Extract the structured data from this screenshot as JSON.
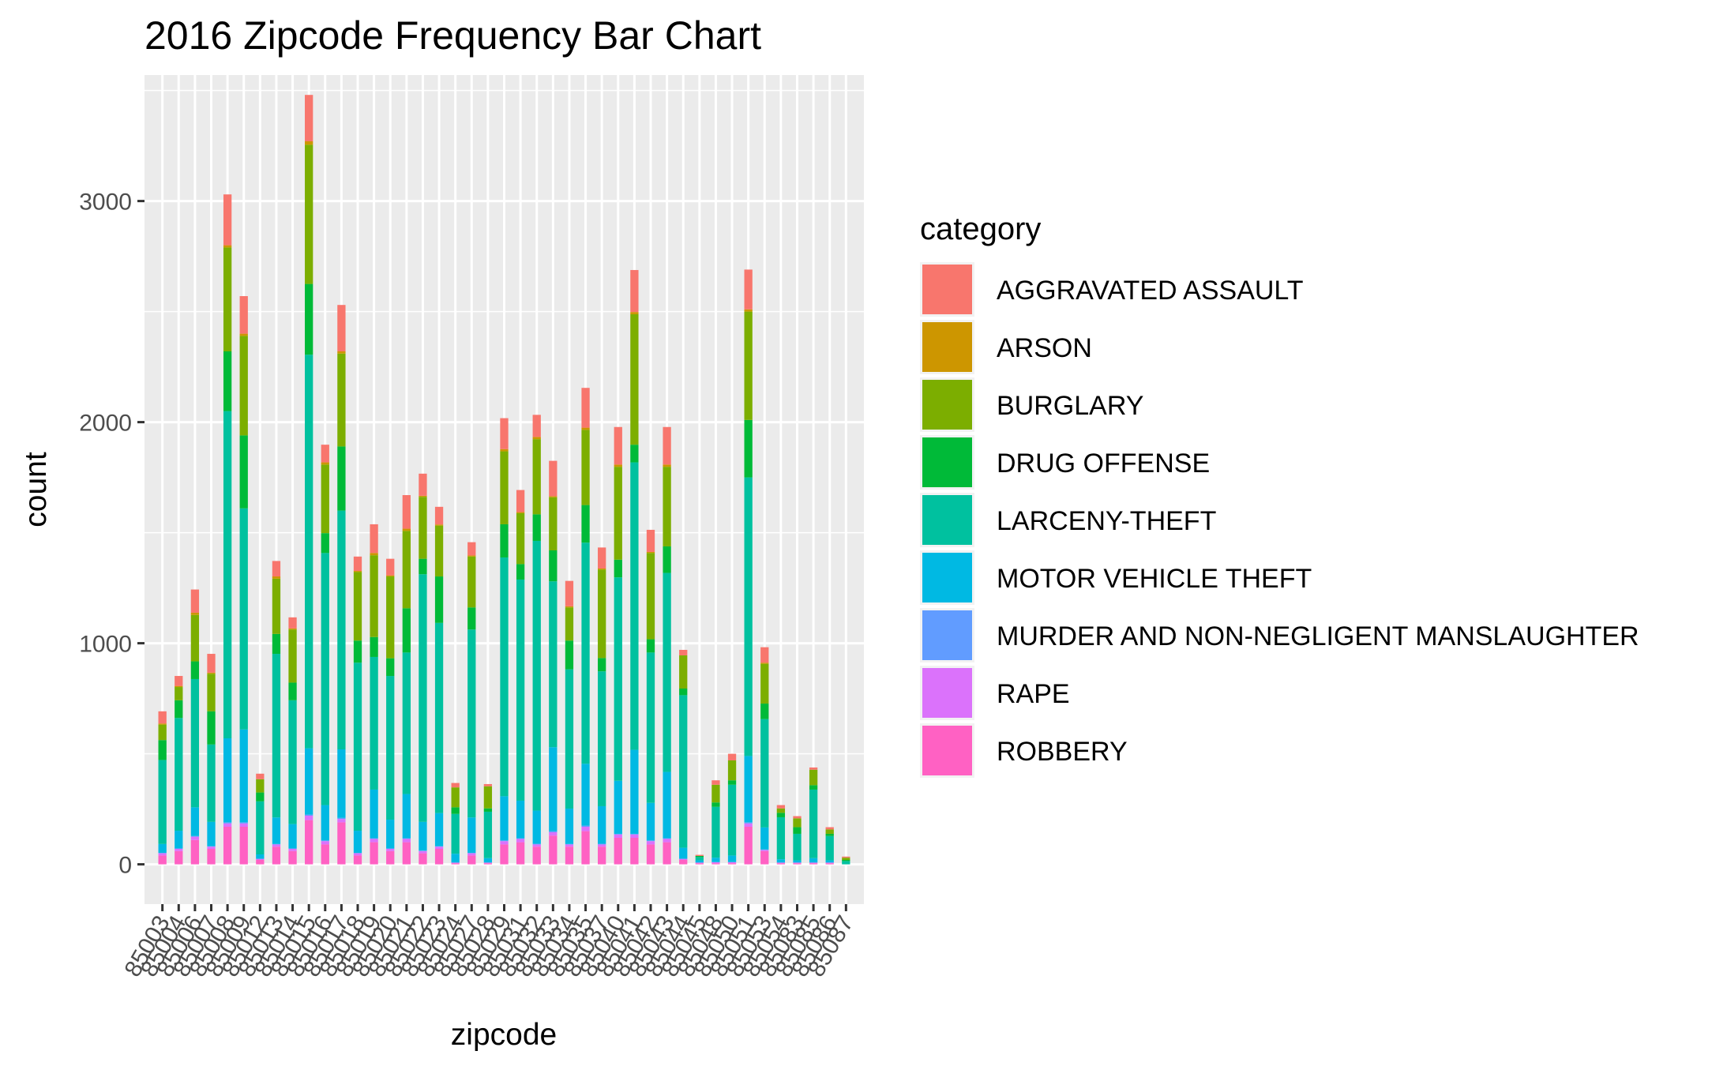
{
  "chart_data": {
    "type": "bar",
    "stacked": true,
    "title": "2016 Zipcode Frequency Bar Chart",
    "xlabel": "zipcode",
    "ylabel": "count",
    "ylim": [
      -180,
      3570
    ],
    "yticks": [
      0,
      1000,
      2000,
      3000
    ],
    "grid": true,
    "legend": {
      "title": "category",
      "position": "right"
    },
    "categories": [
      "85003",
      "85004",
      "85006",
      "85007",
      "85008",
      "85009",
      "85012",
      "85013",
      "85014",
      "85015",
      "85016",
      "85017",
      "85018",
      "85019",
      "85020",
      "85021",
      "85022",
      "85023",
      "85024",
      "85027",
      "85028",
      "85029",
      "85031",
      "85032",
      "85033",
      "85034",
      "85035",
      "85037",
      "85040",
      "85041",
      "85042",
      "85043",
      "85044",
      "85045",
      "85048",
      "85050",
      "85051",
      "85053",
      "85054",
      "85083",
      "85085",
      "85086",
      "85087"
    ],
    "series": [
      {
        "name": "ROBBERY",
        "color": "#FF61C3",
        "values": [
          40,
          60,
          110,
          70,
          170,
          170,
          20,
          80,
          60,
          200,
          90,
          190,
          40,
          100,
          60,
          100,
          50,
          70,
          5,
          40,
          5,
          90,
          100,
          80,
          130,
          80,
          150,
          80,
          120,
          120,
          90,
          100,
          20,
          5,
          5,
          5,
          170,
          60,
          5,
          5,
          5,
          5,
          0
        ]
      },
      {
        "name": "RAPE",
        "color": "#DB72FB",
        "values": [
          10,
          10,
          15,
          10,
          15,
          15,
          5,
          10,
          10,
          20,
          15,
          15,
          10,
          15,
          10,
          15,
          10,
          10,
          3,
          10,
          3,
          15,
          15,
          10,
          15,
          10,
          20,
          10,
          15,
          15,
          15,
          15,
          5,
          3,
          5,
          5,
          15,
          5,
          3,
          3,
          3,
          3,
          0
        ]
      },
      {
        "name": "MURDER AND NON-NEGLIGENT MANSLAUGHTER",
        "color": "#619CFF",
        "values": [
          2,
          2,
          3,
          2,
          5,
          5,
          0,
          2,
          2,
          5,
          3,
          5,
          2,
          3,
          2,
          3,
          2,
          2,
          0,
          2,
          0,
          3,
          3,
          3,
          5,
          2,
          5,
          3,
          3,
          3,
          3,
          3,
          0,
          0,
          0,
          0,
          5,
          2,
          0,
          0,
          0,
          0,
          0
        ]
      },
      {
        "name": "MOTOR VEHICLE THEFT",
        "color": "#00B9E3",
        "values": [
          40,
          80,
          130,
          110,
          380,
          420,
          20,
          120,
          110,
          300,
          160,
          310,
          100,
          220,
          130,
          200,
          130,
          150,
          40,
          160,
          20,
          200,
          170,
          150,
          380,
          160,
          280,
          170,
          240,
          380,
          170,
          300,
          50,
          10,
          20,
          30,
          300,
          100,
          15,
          10,
          20,
          10,
          0
        ]
      },
      {
        "name": "LARCENY-THEFT",
        "color": "#00C19F",
        "values": [
          380,
          510,
          580,
          350,
          1480,
          1000,
          240,
          740,
          560,
          1780,
          1140,
          1080,
          760,
          600,
          650,
          640,
          1120,
          860,
          180,
          850,
          210,
          1080,
          1000,
          1220,
          750,
          630,
          1000,
          610,
          920,
          1300,
          680,
          900,
          690,
          15,
          230,
          320,
          1260,
          490,
          190,
          120,
          310,
          110,
          15
        ]
      },
      {
        "name": "DRUG OFFENSE",
        "color": "#00BA38",
        "values": [
          90,
          80,
          80,
          150,
          270,
          330,
          40,
          90,
          80,
          320,
          90,
          290,
          100,
          90,
          80,
          200,
          70,
          210,
          30,
          100,
          15,
          150,
          70,
          120,
          140,
          130,
          170,
          60,
          80,
          80,
          60,
          120,
          30,
          5,
          20,
          20,
          260,
          70,
          20,
          30,
          20,
          10,
          5
        ]
      },
      {
        "name": "BURGLARY",
        "color": "#7CAE00",
        "values": [
          70,
          60,
          210,
          170,
          470,
          450,
          60,
          250,
          240,
          630,
          310,
          420,
          310,
          370,
          370,
          350,
          280,
          230,
          90,
          230,
          100,
          330,
          230,
          340,
          240,
          150,
          340,
          400,
          420,
          590,
          390,
          360,
          150,
          0,
          80,
          90,
          490,
          180,
          20,
          40,
          70,
          20,
          10
        ]
      },
      {
        "name": "ARSON",
        "color": "#CD9600",
        "values": [
          5,
          5,
          10,
          5,
          10,
          10,
          0,
          10,
          5,
          15,
          10,
          10,
          5,
          10,
          5,
          10,
          5,
          5,
          0,
          5,
          0,
          10,
          5,
          10,
          5,
          5,
          10,
          5,
          10,
          10,
          5,
          10,
          0,
          0,
          0,
          0,
          10,
          5,
          0,
          0,
          0,
          0,
          0
        ]
      },
      {
        "name": "AGGRAVATED ASSAULT",
        "color": "#F8766D",
        "values": [
          55,
          45,
          105,
          85,
          230,
          170,
          25,
          70,
          50,
          210,
          80,
          210,
          65,
          130,
          75,
          152,
          100,
          80,
          20,
          60,
          10,
          140,
          100,
          100,
          160,
          115,
          180,
          95,
          170,
          190,
          100,
          170,
          25,
          5,
          20,
          30,
          180,
          70,
          15,
          10,
          10,
          10,
          5
        ]
      }
    ],
    "legend_order": [
      "AGGRAVATED ASSAULT",
      "ARSON",
      "BURGLARY",
      "DRUG OFFENSE",
      "LARCENY-THEFT",
      "MOTOR VEHICLE THEFT",
      "MURDER AND NON-NEGLIGENT MANSLAUGHTER",
      "RAPE",
      "ROBBERY"
    ]
  }
}
